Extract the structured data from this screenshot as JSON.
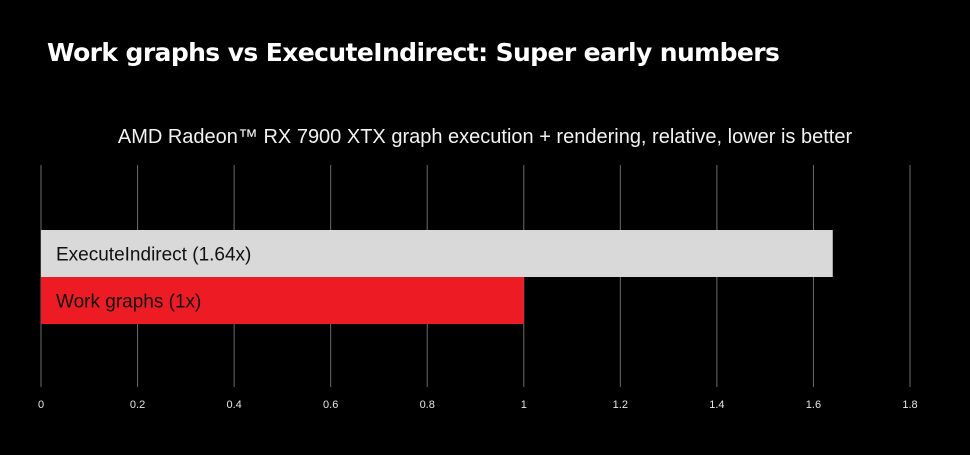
{
  "slide": {
    "title": "Work graphs vs ExecuteIndirect: Super early numbers"
  },
  "chart_data": {
    "type": "bar",
    "orientation": "horizontal",
    "title": "AMD Radeon™ RX 7900 XTX graph execution + rendering, relative, lower is better",
    "categories": [
      "ExecuteIndirect (1.64x)",
      "Work graphs (1x)"
    ],
    "values": [
      1.64,
      1.0
    ],
    "bar_colors": [
      "#d9d9d9",
      "#ed1c24"
    ],
    "label_colors": [
      "#111111",
      "#111111"
    ],
    "xlim": [
      0,
      1.8
    ],
    "xticks": [
      0,
      0.2,
      0.4,
      0.6,
      0.8,
      1,
      1.2,
      1.4,
      1.6,
      1.8
    ],
    "grid": true,
    "xlabel": "",
    "ylabel": ""
  }
}
